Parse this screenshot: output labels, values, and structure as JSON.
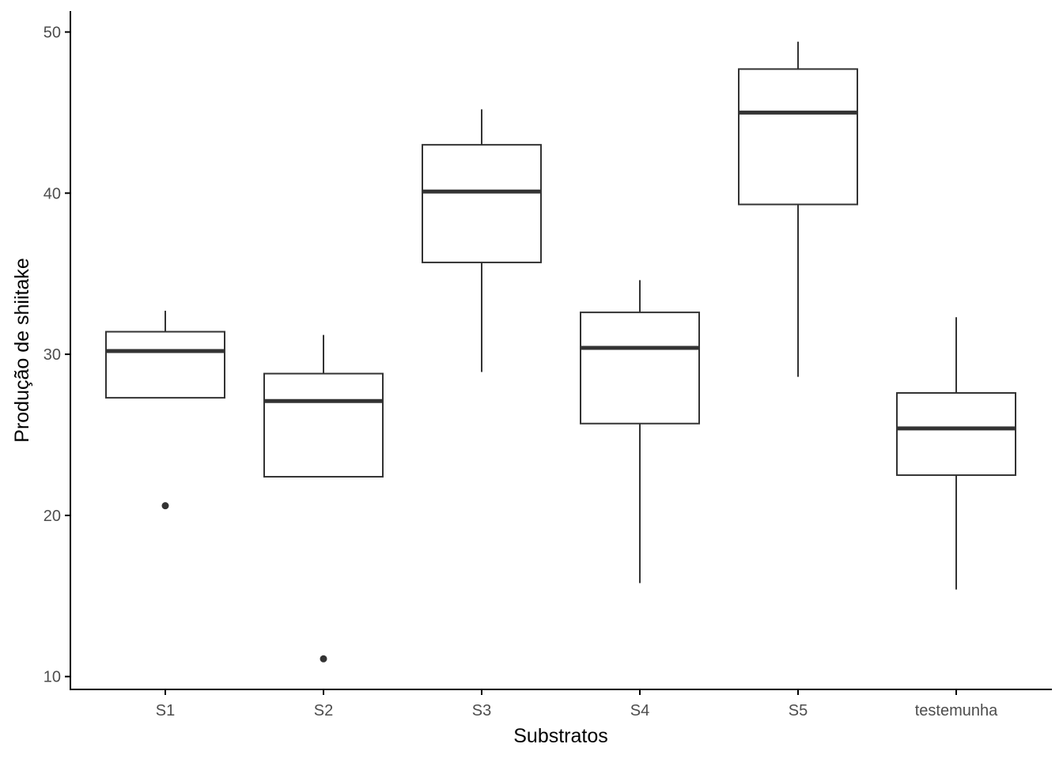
{
  "chart_data": {
    "type": "boxplot",
    "xlabel": "Substratos",
    "ylabel": "Produção de shiitake",
    "ylim": [
      9.2,
      51.3
    ],
    "yticks": [
      10,
      20,
      30,
      40,
      50
    ],
    "grid": false,
    "categories": [
      "S1",
      "S2",
      "S3",
      "S4",
      "S5",
      "testemunha"
    ],
    "boxes": [
      {
        "category": "S1",
        "whisker_low": 27.3,
        "q1": 27.3,
        "median": 30.2,
        "q3": 31.4,
        "whisker_high": 32.7,
        "outliers": [
          20.6
        ]
      },
      {
        "category": "S2",
        "whisker_low": 22.4,
        "q1": 22.4,
        "median": 27.1,
        "q3": 28.8,
        "whisker_high": 31.2,
        "outliers": [
          11.1
        ]
      },
      {
        "category": "S3",
        "whisker_low": 28.9,
        "q1": 35.7,
        "median": 40.1,
        "q3": 43.0,
        "whisker_high": 45.2,
        "outliers": []
      },
      {
        "category": "S4",
        "whisker_low": 15.8,
        "q1": 25.7,
        "median": 30.4,
        "q3": 32.6,
        "whisker_high": 34.6,
        "outliers": []
      },
      {
        "category": "S5",
        "whisker_low": 28.6,
        "q1": 39.3,
        "median": 45.0,
        "q3": 47.7,
        "whisker_high": 49.4,
        "outliers": []
      },
      {
        "category": "testemunha",
        "whisker_low": 15.4,
        "q1": 22.5,
        "median": 25.4,
        "q3": 27.6,
        "whisker_high": 32.3,
        "outliers": []
      }
    ],
    "colors": {
      "box_stroke": "#333333",
      "axis": "#000000",
      "tick_label": "#4d4d4d",
      "background": "#ffffff"
    }
  }
}
